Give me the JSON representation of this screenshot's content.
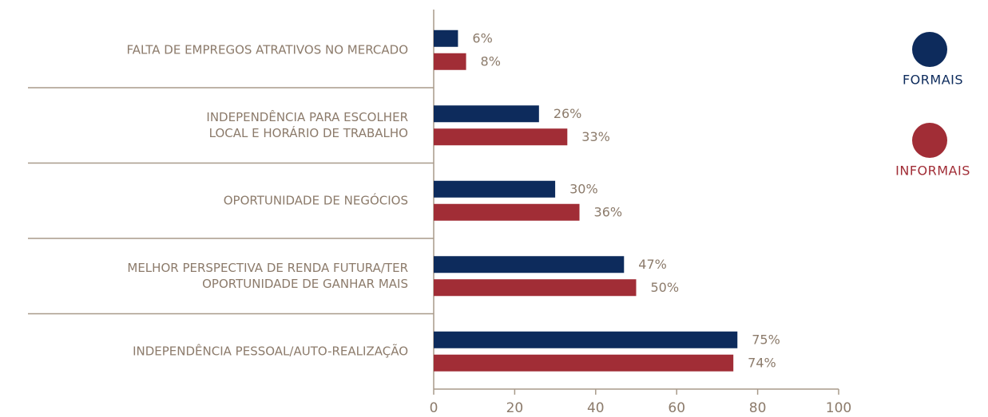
{
  "chart_data": {
    "type": "hbar",
    "categories": [
      [
        "FALTA DE EMPREGOS ATRATIVOS NO MERCADO"
      ],
      [
        "INDEPENDÊNCIA PARA ESCOLHER",
        "LOCAL E HORÁRIO DE TRABALHO"
      ],
      [
        "OPORTUNIDADE DE NEGÓCIOS"
      ],
      [
        "MELHOR PERSPECTIVA DE RENDA FUTURA/TER",
        "OPORTUNIDADE DE GANHAR MAIS"
      ],
      [
        "INDEPENDÊNCIA PESSOAL/AUTO-REALIZAÇÃO"
      ]
    ],
    "series": [
      {
        "name": "FORMAIS",
        "color": "#0d2b5c",
        "values": [
          6,
          26,
          30,
          47,
          75
        ],
        "value_labels": [
          "6%",
          "26%",
          "30%",
          "47%",
          "75%"
        ]
      },
      {
        "name": "INFORMAIS",
        "color": "#a12d36",
        "values": [
          8,
          33,
          36,
          50,
          74
        ],
        "value_labels": [
          "8%",
          "33%",
          "36%",
          "50%",
          "74%"
        ]
      }
    ],
    "xlim": [
      0,
      100
    ],
    "xticks": [
      0,
      20,
      40,
      60,
      80,
      100
    ]
  }
}
